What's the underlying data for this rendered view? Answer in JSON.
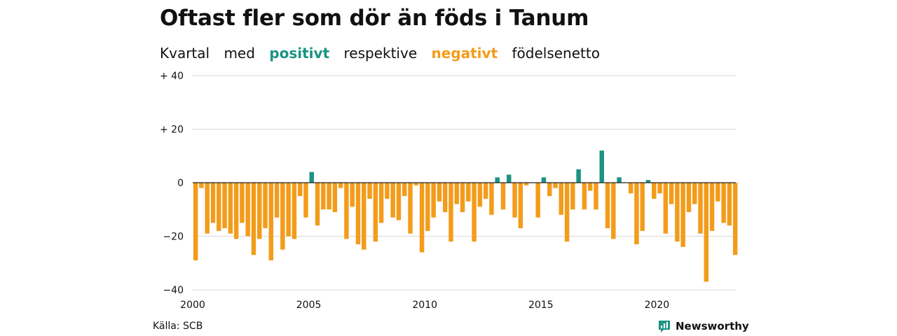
{
  "colors": {
    "positive": "#1b9383",
    "negative": "#f39c1b",
    "grid": "#d9d9d9",
    "zero": "#222222"
  },
  "header": {
    "title": "Oftast fler som dör än föds i Tanum",
    "subtitle_parts": [
      "Kvartal",
      "med",
      "positivt",
      "respektive",
      "negativt",
      "födelsenetto"
    ]
  },
  "footer": {
    "source": "Källa: SCB",
    "brand": "Newsworthy",
    "brand_icon": "newsworthy-logo-icon"
  },
  "chart_data": {
    "type": "bar",
    "x_start": "2000 Q1",
    "x_end": "2023 Q2",
    "x_ticks": [
      {
        "label": "2000",
        "year": 2000
      },
      {
        "label": "2005",
        "year": 2005
      },
      {
        "label": "2010",
        "year": 2010
      },
      {
        "label": "2015",
        "year": 2015
      },
      {
        "label": "2020",
        "year": 2020
      }
    ],
    "y_ticks": [
      {
        "label": "+ 40",
        "value": 40
      },
      {
        "label": "+ 20",
        "value": 20
      },
      {
        "label": "0",
        "value": 0
      },
      {
        "label": "−20",
        "value": -20
      },
      {
        "label": "−40",
        "value": -40
      }
    ],
    "ylim": [
      -40,
      40
    ],
    "values": [
      -29,
      -2,
      -19,
      -15,
      -18,
      -17,
      -19,
      -21,
      -15,
      -20,
      -27,
      -21,
      -17,
      -29,
      -13,
      -25,
      -20,
      -21,
      -5,
      -13,
      4,
      -16,
      -10,
      -10,
      -11,
      -2,
      -21,
      -9,
      -23,
      -25,
      -6,
      -22,
      -15,
      -6,
      -13,
      -14,
      -5,
      -19,
      -1,
      -26,
      -18,
      -13,
      -7,
      -11,
      -22,
      -8,
      -11,
      -7,
      -22,
      -9,
      -6,
      -12,
      2,
      -10,
      3,
      -13,
      -17,
      -1,
      0,
      -13,
      2,
      -5,
      -2,
      -12,
      -22,
      -10,
      5,
      -10,
      -3,
      -10,
      12,
      -17,
      -21,
      2,
      0,
      -4,
      -23,
      -18,
      1,
      -6,
      -4,
      -19,
      -8,
      -22,
      -24,
      -11,
      -8,
      -19,
      -37,
      -18,
      -7,
      -15,
      -16,
      -27
    ]
  }
}
